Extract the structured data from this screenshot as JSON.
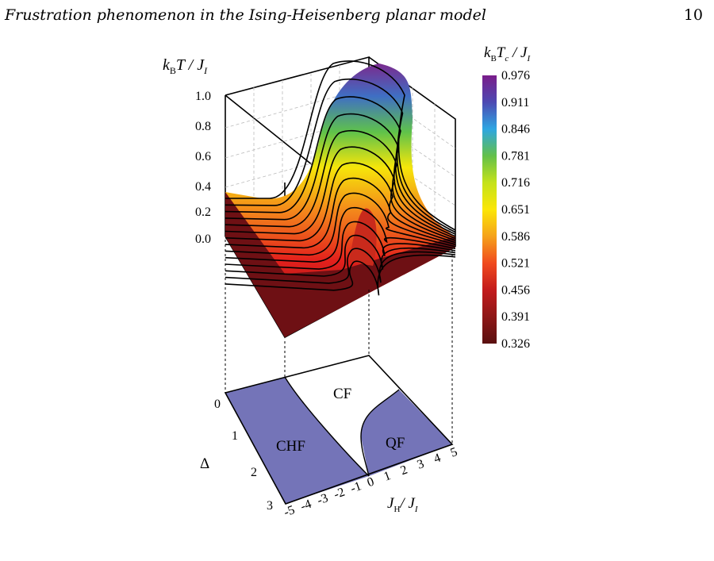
{
  "header": {
    "running_title": "Frustration phenomenon in the Ising-Heisenberg planar model",
    "page_number": "10"
  },
  "colors": {
    "region_fill": "#7474b8",
    "surface_low": "#6e0f14",
    "surface_mid": "#e8241e",
    "surface_high": "#7b2a8e"
  },
  "plot3d": {
    "z_axis_label_main": "k",
    "z_axis_label_sub1": "B",
    "z_axis_label_rest": "T / J",
    "z_axis_label_sub2": "I",
    "z_ticks": [
      "1.0",
      "0.8",
      "0.6",
      "0.4",
      "0.2",
      "0.0"
    ]
  },
  "colorbar": {
    "title_main": "k",
    "title_sub1": "B",
    "title_mid": "T",
    "title_sub2": "c",
    "title_rest": " / J",
    "title_sub3": "I",
    "labels": [
      "0.976",
      "0.911",
      "0.846",
      "0.781",
      "0.716",
      "0.651",
      "0.586",
      "0.521",
      "0.456",
      "0.391",
      "0.326"
    ],
    "stops": [
      "#7a1d8a",
      "#4d49b2",
      "#2ea6e2",
      "#63c04a",
      "#c4e21a",
      "#fbe607",
      "#f5a21a",
      "#f04a1e",
      "#c31b1c",
      "#8e1717",
      "#5a1010"
    ]
  },
  "phase_diagram": {
    "regions": [
      "CF",
      "CHF",
      "QF"
    ],
    "delta_label": "Δ",
    "delta_ticks": [
      "0",
      "1",
      "2",
      "3"
    ],
    "jh_ticks": [
      "-5",
      "-4",
      "-3",
      "-2",
      "-1",
      "0",
      "1",
      "2",
      "3",
      "4",
      "5"
    ],
    "x_axis_label_main": "J",
    "x_axis_label_sub1": "H",
    "x_axis_label_rest": "/ J",
    "x_axis_label_sub2": "I"
  }
}
